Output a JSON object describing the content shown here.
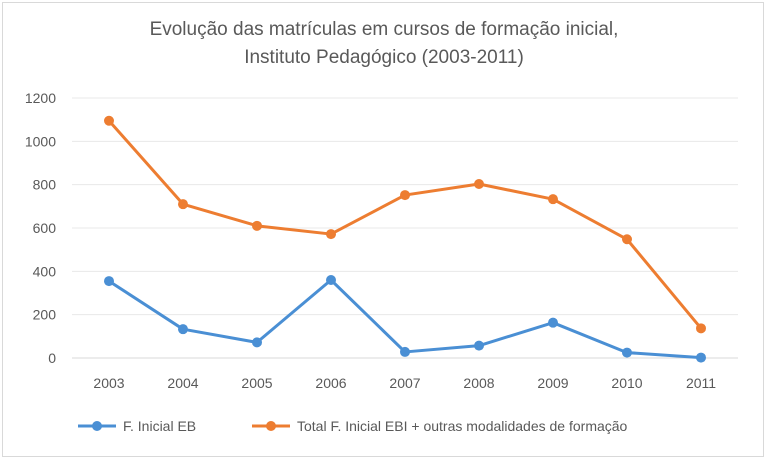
{
  "chart_data": {
    "type": "line",
    "title_line1": "Evolução das matrículas em cursos de formação inicial,",
    "title_line2": "Instituto Pedagógico (2003-2011)",
    "categories": [
      "2003",
      "2004",
      "2005",
      "2006",
      "2007",
      "2008",
      "2009",
      "2010",
      "2011"
    ],
    "series": [
      {
        "name": "F. Inicial EB",
        "color": "#4a8fd4",
        "values": [
          355,
          133,
          72,
          360,
          28,
          57,
          163,
          25,
          2
        ]
      },
      {
        "name": "Total F. Inicial EBI + outras modalidades de formação",
        "color": "#ed7d31",
        "values": [
          1095,
          710,
          610,
          572,
          752,
          803,
          733,
          548,
          137
        ]
      }
    ],
    "ylim": [
      0,
      1200
    ],
    "yticks": [
      0,
      200,
      400,
      600,
      800,
      1000,
      1200
    ],
    "grid": true,
    "legend_position": "bottom"
  }
}
